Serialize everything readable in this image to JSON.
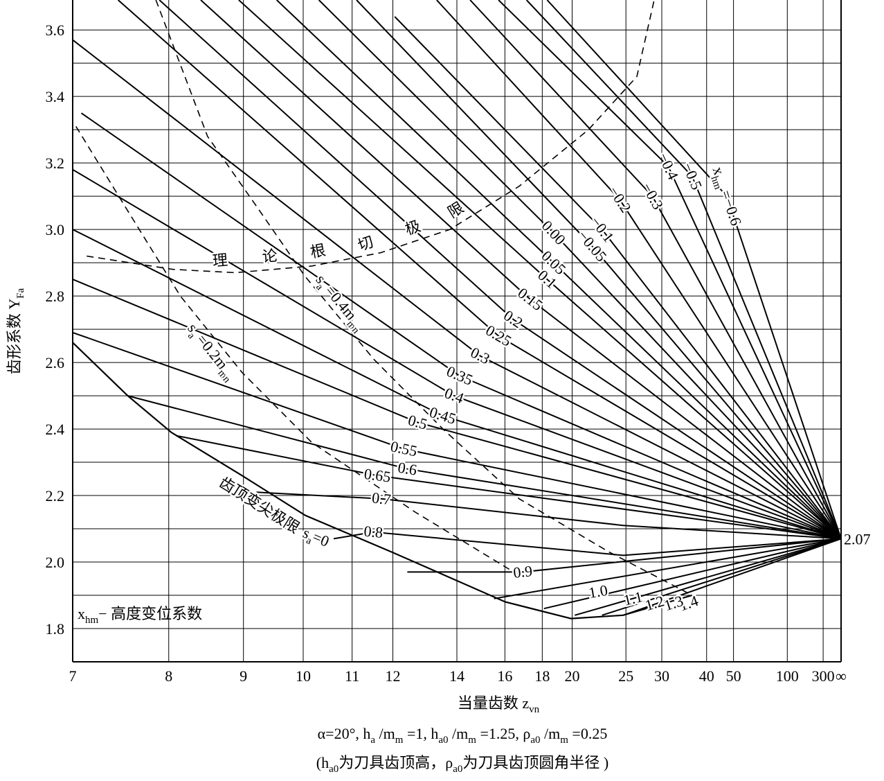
{
  "chart_data": {
    "type": "line",
    "xscale": "reciprocal",
    "grid": true,
    "color": "#000000",
    "xlabel": [
      "当量齿数 z",
      "vn"
    ],
    "ylabel": [
      "齿形系数 Y",
      "Fa"
    ],
    "xlim": [
      7,
      null
    ],
    "ylim": [
      1.7,
      3.69
    ],
    "xticks": [
      7,
      8,
      9,
      10,
      11,
      12,
      14,
      16,
      18,
      20,
      25,
      30,
      40,
      50,
      100,
      300,
      {
        "value": null,
        "label": "∞"
      }
    ],
    "yticks": [
      1.8,
      {
        "value": 2.0,
        "label": "2.0"
      },
      2.2,
      2.4,
      2.6,
      2.8,
      {
        "value": 3.0,
        "label": "3.0"
      },
      3.2,
      3.4,
      3.6
    ],
    "minor_yticks": [
      1.9,
      2.1,
      2.3,
      2.5,
      2.7,
      2.9,
      3.1,
      3.3,
      3.5
    ],
    "convergence": 2.07,
    "series_label_prefix": [
      "x",
      "hm",
      " ="
    ],
    "series": [
      {
        "name": "1.4",
        "x": [
          24.7
        ],
        "values": [
          1.84
        ]
      },
      {
        "name": "1.3",
        "x": [
          22.5
        ],
        "values": [
          1.84
        ]
      },
      {
        "name": "1.2",
        "x": [
          20.2
        ],
        "values": [
          1.84
        ]
      },
      {
        "name": "1.1",
        "x": [
          18.1
        ],
        "values": [
          1.86
        ]
      },
      {
        "name": "1.0",
        "x": [
          15.5
        ],
        "values": [
          1.89
        ]
      },
      {
        "name": "0.9",
        "x": [
          12.4,
          16.9
        ],
        "values": [
          1.97,
          1.97
        ]
      },
      {
        "name": "0.8",
        "x": [
          10.6,
          11.5,
          24.7
        ],
        "values": [
          2.07,
          2.09,
          2.02
        ]
      },
      {
        "name": "0.7",
        "x": [
          9.2,
          11.7,
          24.7
        ],
        "values": [
          2.21,
          2.19,
          2.11
        ]
      },
      {
        "name": "0.65",
        "x": [
          8.09,
          11.6
        ],
        "values": [
          2.38,
          2.26
        ]
      },
      {
        "name": "0.6",
        "x": [
          7.54,
          12.4
        ],
        "values": [
          2.5,
          2.28
        ]
      },
      {
        "name": "0.55",
        "x": [
          7,
          12.3
        ],
        "values": [
          2.69,
          2.34
        ]
      },
      {
        "name": "0.5",
        "x": [
          7,
          12.7
        ],
        "values": [
          2.85,
          2.42
        ]
      },
      {
        "name": "0.45",
        "x": [
          7,
          13.5
        ],
        "values": [
          3.0,
          2.44
        ]
      },
      {
        "name": "0.4",
        "x": [
          7,
          13.9
        ],
        "values": [
          3.18,
          2.5
        ]
      },
      {
        "name": "0.35",
        "x": [
          7.08,
          14.1
        ],
        "values": [
          3.35,
          2.56
        ]
      },
      {
        "name": "0.3",
        "x": [
          7,
          14.9
        ],
        "values": [
          3.57,
          2.62
        ]
      },
      {
        "name": "0.25",
        "x": [
          7.44,
          15.7
        ],
        "values": [
          3.69,
          2.68
        ]
      },
      {
        "name": "0.2",
        "x": [
          7.89,
          16.4
        ],
        "values": [
          3.69,
          2.73
        ]
      },
      {
        "name": "0.15",
        "x": [
          8.4,
          17.3
        ],
        "values": [
          3.69,
          2.79
        ]
      },
      {
        "name": "0.1",
        "x": [
          8.93,
          18.3
        ],
        "values": [
          3.69,
          2.85
        ]
      },
      {
        "name": "0.05",
        "x": [
          9.53,
          18.7
        ],
        "values": [
          3.69,
          2.9
        ]
      },
      {
        "name": "0.00",
        "x": [
          10.3,
          18.7
        ],
        "values": [
          3.69,
          2.99
        ]
      },
      {
        "name": "−0.05",
        "x": [
          11.1,
          21.6
        ],
        "values": [
          3.69,
          2.95
        ]
      },
      {
        "name": "−0.1",
        "x": [
          12.05,
          22.5
        ],
        "values": [
          3.64,
          3.0
        ]
      },
      {
        "name": "−0.2",
        "x": [
          13.3,
          24.3
        ],
        "values": [
          3.69,
          3.09
        ]
      },
      {
        "name": "−0.3",
        "x": [
          14.5,
          28.5
        ],
        "values": [
          3.69,
          3.1
        ]
      },
      {
        "name": "−0.4",
        "x": [
          15.7,
          31.1
        ],
        "values": [
          3.69,
          3.19
        ]
      },
      {
        "name": "−0.5",
        "x": [
          17.1,
          36.1
        ],
        "values": [
          3.69,
          3.16
        ]
      },
      {
        "name": "−0.6",
        "x": [
          18.3,
          47.1
        ],
        "values": [
          3.69,
          3.1
        ]
      }
    ],
    "curves": [
      {
        "name": "理论根切极限",
        "style": "dashed",
        "x": [
          7.13,
          8.05,
          8.88,
          10.16,
          11.68,
          13.75,
          16.71,
          21.29,
          26.34,
          28.78
        ],
        "values": [
          2.92,
          2.88,
          2.87,
          2.89,
          2.93,
          3.0,
          3.13,
          3.3,
          3.46,
          3.69
        ]
      },
      {
        "name": [
          "s",
          "a",
          " =0.4m",
          "mn"
        ],
        "style": "dashed",
        "x": [
          7.85,
          8.49,
          9.2,
          10.03,
          11.51,
          13.51,
          16.71,
          23.19,
          36.14
        ],
        "values": [
          3.69,
          3.28,
          3.07,
          2.86,
          2.61,
          2.4,
          2.19,
          2.03,
          1.9
        ]
      },
      {
        "name": [
          "s",
          "a",
          " =0.2m",
          "mn"
        ],
        "style": "dashed",
        "x": [
          7.03,
          7.51,
          8.14,
          8.98,
          10.16,
          12.63,
          16.71
        ],
        "values": [
          3.31,
          3.07,
          2.8,
          2.57,
          2.36,
          2.15,
          1.96
        ]
      },
      {
        "name": [
          "齿顶变尖极限 s",
          "a",
          "=0"
        ],
        "style": "solid",
        "x": [
          7,
          7.54,
          8.03,
          8.98,
          10.04,
          11.97,
          16.02,
          19.92,
          24.67,
          36.14
        ],
        "values": [
          2.66,
          2.5,
          2.39,
          2.26,
          2.14,
          2.03,
          1.88,
          1.83,
          1.84,
          1.9
        ]
      }
    ],
    "legend": [
      "x",
      "hm",
      "− 高度变位系数"
    ],
    "notes": [
      [
        "α=20°, h",
        "a",
        " /m",
        "m",
        " =1, h",
        "a0",
        " /m",
        "m",
        " =1.25, ρ",
        "a0",
        " /m",
        "m",
        " =0.25"
      ],
      [
        "(h",
        "a0",
        "为刀具齿顶高，ρ",
        "a0",
        "为刀具齿顶圆角半径 )"
      ]
    ]
  }
}
